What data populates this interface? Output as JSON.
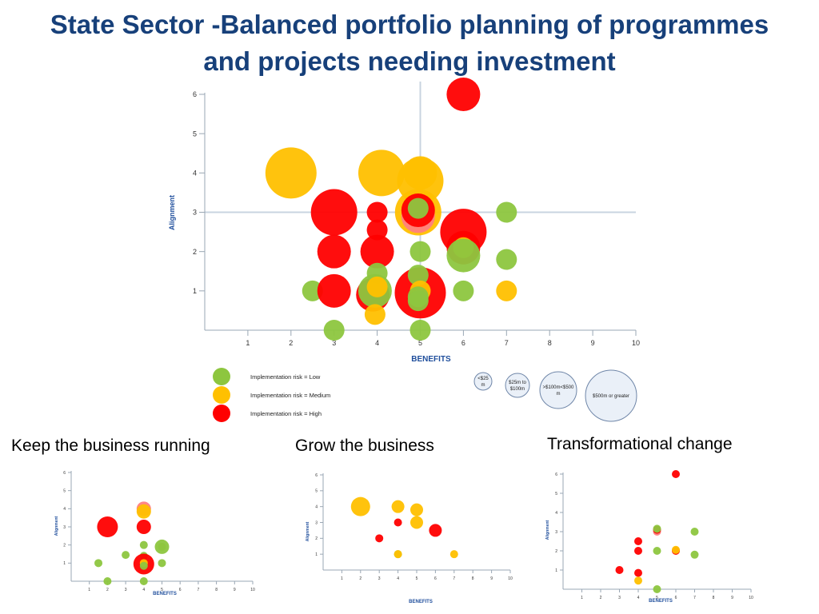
{
  "slide": {
    "title_line1": "State Sector -Balanced portfolio planning of programmes",
    "title_line2": "and projects needing investment"
  },
  "colors": {
    "low": "#8dc63f",
    "medium": "#ffc000",
    "high": "#ff0000",
    "high_light": "#ff8080",
    "axis": "#9aa7b4",
    "guide": "#c8d4e0",
    "axis_label": "#1f4e9c"
  },
  "legend": {
    "risk": [
      {
        "label": "Implementation risk = Low",
        "risk": "low"
      },
      {
        "label": "Implementation risk = Medium",
        "risk": "medium"
      },
      {
        "label": "Implementation risk = High",
        "risk": "high"
      }
    ],
    "size_lines": [
      [
        "<$25",
        "m"
      ],
      [
        "$25m to",
        "$100m"
      ],
      [
        ">$100m<$500",
        "m"
      ],
      [
        "$500m or greater"
      ]
    ]
  },
  "subheadings": [
    "Keep the business running",
    "Grow the business",
    "Transformational change"
  ],
  "chart_data": [
    {
      "type": "scatter",
      "title": "",
      "xlabel": "BENEFITS",
      "ylabel": "Alignment",
      "xlim": [
        0,
        10
      ],
      "ylim": [
        0,
        6
      ],
      "x_ticks": [
        "1",
        "2",
        "3",
        "4",
        "5",
        "6",
        "7",
        "8",
        "9",
        "10"
      ],
      "y_ticks": [
        "1",
        "2",
        "3",
        "4",
        "5",
        "6"
      ],
      "guide_lines": {
        "x": 5,
        "y": 3
      },
      "grid": false,
      "points": [
        {
          "x": 2.0,
          "y": 4.0,
          "risk": "medium",
          "size": 4
        },
        {
          "x": 4.1,
          "y": 4.0,
          "risk": "medium",
          "size": 3
        },
        {
          "x": 5.0,
          "y": 4.0,
          "risk": "medium",
          "size": 2
        },
        {
          "x": 5.0,
          "y": 3.8,
          "risk": "medium",
          "size": 3
        },
        {
          "x": 3.0,
          "y": 3.0,
          "risk": "high",
          "size": 3
        },
        {
          "x": 4.0,
          "y": 3.0,
          "risk": "high",
          "size": 1
        },
        {
          "x": 4.0,
          "y": 2.55,
          "risk": "high",
          "size": 1
        },
        {
          "x": 4.95,
          "y": 3.0,
          "risk": "medium",
          "size": 3
        },
        {
          "x": 4.95,
          "y": 2.9,
          "risk": "high_light",
          "size": 2
        },
        {
          "x": 4.95,
          "y": 3.05,
          "risk": "high",
          "size": 2
        },
        {
          "x": 4.95,
          "y": 3.1,
          "risk": "low",
          "size": 1
        },
        {
          "x": 7.0,
          "y": 3.0,
          "risk": "low",
          "size": 1
        },
        {
          "x": 6.0,
          "y": 2.5,
          "risk": "high",
          "size": 3
        },
        {
          "x": 6.0,
          "y": 6.0,
          "risk": "high",
          "size": 2
        },
        {
          "x": 3.0,
          "y": 2.0,
          "risk": "high",
          "size": 2
        },
        {
          "x": 4.0,
          "y": 2.0,
          "risk": "high",
          "size": 2
        },
        {
          "x": 5.0,
          "y": 2.0,
          "risk": "low",
          "size": 1
        },
        {
          "x": 6.0,
          "y": 2.1,
          "risk": "high",
          "size": 2
        },
        {
          "x": 6.0,
          "y": 2.1,
          "risk": "medium",
          "size": 1
        },
        {
          "x": 6.0,
          "y": 1.9,
          "risk": "low",
          "size": 2
        },
        {
          "x": 7.0,
          "y": 1.8,
          "risk": "low",
          "size": 1
        },
        {
          "x": 2.5,
          "y": 1.0,
          "risk": "low",
          "size": 1
        },
        {
          "x": 3.0,
          "y": 1.0,
          "risk": "high",
          "size": 2
        },
        {
          "x": 3.9,
          "y": 0.9,
          "risk": "high",
          "size": 2
        },
        {
          "x": 4.0,
          "y": 1.45,
          "risk": "low",
          "size": 1
        },
        {
          "x": 3.95,
          "y": 1.0,
          "risk": "low",
          "size": 2
        },
        {
          "x": 4.0,
          "y": 1.1,
          "risk": "medium",
          "size": 1
        },
        {
          "x": 3.95,
          "y": 0.4,
          "risk": "medium",
          "size": 1
        },
        {
          "x": 5.0,
          "y": 0.95,
          "risk": "high",
          "size": 4
        },
        {
          "x": 4.95,
          "y": 1.4,
          "risk": "low",
          "size": 1
        },
        {
          "x": 5.0,
          "y": 1.0,
          "risk": "medium",
          "size": 1
        },
        {
          "x": 4.95,
          "y": 0.85,
          "risk": "low",
          "size": 1
        },
        {
          "x": 4.95,
          "y": 0.75,
          "risk": "low",
          "size": 1
        },
        {
          "x": 6.0,
          "y": 1.0,
          "risk": "low",
          "size": 1
        },
        {
          "x": 7.0,
          "y": 1.0,
          "risk": "medium",
          "size": 1
        },
        {
          "x": 3.0,
          "y": 0.0,
          "risk": "low",
          "size": 1
        },
        {
          "x": 5.0,
          "y": 0.0,
          "risk": "low",
          "size": 1
        }
      ]
    },
    {
      "type": "scatter",
      "title": "",
      "xlabel": "BENEFITS",
      "ylabel": "Alignment",
      "xlim": [
        0,
        10
      ],
      "ylim": [
        0,
        6
      ],
      "x_ticks": [
        "1",
        "2",
        "3",
        "4",
        "5",
        "6",
        "7",
        "8",
        "9",
        "10"
      ],
      "y_ticks": [
        "1",
        "2",
        "3",
        "4",
        "5",
        "6"
      ],
      "points": [
        {
          "x": 4.0,
          "y": 4.0,
          "risk": "high_light",
          "size": 2
        },
        {
          "x": 4.0,
          "y": 3.85,
          "risk": "medium",
          "size": 2
        },
        {
          "x": 2.0,
          "y": 3.0,
          "risk": "high",
          "size": 3
        },
        {
          "x": 4.0,
          "y": 3.0,
          "risk": "high",
          "size": 2
        },
        {
          "x": 4.0,
          "y": 2.0,
          "risk": "low",
          "size": 1
        },
        {
          "x": 5.0,
          "y": 1.9,
          "risk": "low",
          "size": 2
        },
        {
          "x": 5.0,
          "y": 1.9,
          "risk": "low",
          "size": 1
        },
        {
          "x": 3.0,
          "y": 1.45,
          "risk": "low",
          "size": 1
        },
        {
          "x": 4.0,
          "y": 1.4,
          "risk": "low",
          "size": 1
        },
        {
          "x": 1.5,
          "y": 1.0,
          "risk": "low",
          "size": 1
        },
        {
          "x": 4.0,
          "y": 0.95,
          "risk": "high",
          "size": 3
        },
        {
          "x": 4.0,
          "y": 1.0,
          "risk": "medium",
          "size": 1
        },
        {
          "x": 4.0,
          "y": 0.85,
          "risk": "low",
          "size": 1
        },
        {
          "x": 5.0,
          "y": 1.0,
          "risk": "low",
          "size": 1
        },
        {
          "x": 2.0,
          "y": 0.0,
          "risk": "low",
          "size": 1
        },
        {
          "x": 4.0,
          "y": 0.0,
          "risk": "low",
          "size": 1
        }
      ]
    },
    {
      "type": "scatter",
      "title": "",
      "xlabel": "BENEFITS",
      "ylabel": "Alignment",
      "xlim": [
        0,
        10
      ],
      "ylim": [
        0,
        6
      ],
      "x_ticks": [
        "1",
        "2",
        "3",
        "4",
        "5",
        "6",
        "7",
        "8",
        "9",
        "10"
      ],
      "y_ticks": [
        "1",
        "2",
        "3",
        "4",
        "5",
        "6"
      ],
      "points": [
        {
          "x": 2.0,
          "y": 4.0,
          "risk": "medium",
          "size": 3
        },
        {
          "x": 4.0,
          "y": 4.0,
          "risk": "medium",
          "size": 2
        },
        {
          "x": 5.0,
          "y": 3.8,
          "risk": "medium",
          "size": 2
        },
        {
          "x": 4.0,
          "y": 3.0,
          "risk": "high",
          "size": 1
        },
        {
          "x": 5.0,
          "y": 3.0,
          "risk": "medium",
          "size": 2
        },
        {
          "x": 6.0,
          "y": 2.5,
          "risk": "high",
          "size": 2
        },
        {
          "x": 3.0,
          "y": 2.0,
          "risk": "high",
          "size": 1
        },
        {
          "x": 4.0,
          "y": 1.0,
          "risk": "low",
          "size": 1
        },
        {
          "x": 4.0,
          "y": 1.0,
          "risk": "medium",
          "size": 1
        },
        {
          "x": 7.0,
          "y": 1.0,
          "risk": "medium",
          "size": 1
        }
      ]
    },
    {
      "type": "scatter",
      "title": "",
      "xlabel": "BENEFITS",
      "ylabel": "Alignment",
      "xlim": [
        0,
        10
      ],
      "ylim": [
        0,
        6
      ],
      "x_ticks": [
        "1",
        "2",
        "3",
        "4",
        "5",
        "6",
        "7",
        "8",
        "9",
        "10"
      ],
      "y_ticks": [
        "1",
        "2",
        "3",
        "4",
        "5",
        "6"
      ],
      "points": [
        {
          "x": 6.0,
          "y": 6.0,
          "risk": "high",
          "size": 1
        },
        {
          "x": 5.0,
          "y": 3.0,
          "risk": "high_light",
          "size": 1
        },
        {
          "x": 5.0,
          "y": 3.1,
          "risk": "high",
          "size": 1
        },
        {
          "x": 5.0,
          "y": 3.15,
          "risk": "low",
          "size": 1
        },
        {
          "x": 7.0,
          "y": 3.0,
          "risk": "low",
          "size": 1
        },
        {
          "x": 4.0,
          "y": 2.5,
          "risk": "high",
          "size": 1
        },
        {
          "x": 4.0,
          "y": 2.0,
          "risk": "high",
          "size": 1
        },
        {
          "x": 5.0,
          "y": 2.0,
          "risk": "low",
          "size": 1
        },
        {
          "x": 6.0,
          "y": 2.0,
          "risk": "high",
          "size": 1
        },
        {
          "x": 6.0,
          "y": 2.05,
          "risk": "medium",
          "size": 1
        },
        {
          "x": 7.0,
          "y": 1.8,
          "risk": "low",
          "size": 1
        },
        {
          "x": 3.0,
          "y": 1.0,
          "risk": "high",
          "size": 1
        },
        {
          "x": 4.0,
          "y": 0.85,
          "risk": "high",
          "size": 1
        },
        {
          "x": 4.0,
          "y": 0.45,
          "risk": "medium",
          "size": 1
        },
        {
          "x": 5.0,
          "y": 0.0,
          "risk": "low",
          "size": 1
        }
      ]
    }
  ]
}
